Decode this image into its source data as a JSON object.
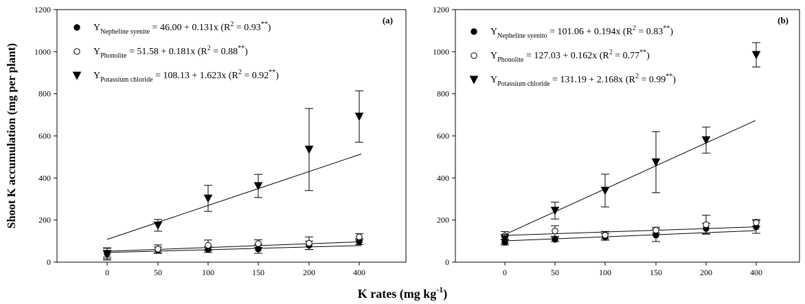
{
  "figure": {
    "ylabel": "Shoot K accumulation (mg per plant)",
    "xlabel_main": "K rates (mg kg",
    "xlabel_sup": "-1",
    "xlabel_close": ")"
  },
  "chart_data": [
    {
      "type": "scatter",
      "panel_label": "(a)",
      "categories": [
        "0",
        "50",
        "100",
        "150",
        "200",
        "400"
      ],
      "ylim": [
        0,
        1200
      ],
      "yticks": [
        "0",
        "200",
        "400",
        "600",
        "800",
        "1000",
        "1200"
      ],
      "legend_position": "top-left",
      "series": [
        {
          "name": "Nepheline syenite",
          "legend": {
            "pre": "Y",
            "sub": "Nepheline syenite",
            "eq": " =  46.00 + 0.131x (R",
            "sup1": "2",
            "r2": " = 0.93",
            "sup2": "**",
            "close": ")"
          },
          "marker": "filled-circle",
          "values": [
            40,
            58,
            60,
            62,
            80,
            97
          ],
          "error": [
            16,
            14,
            14,
            20,
            20,
            14
          ],
          "fit": {
            "intercept": 46.0,
            "slope": 0.131
          }
        },
        {
          "name": "Phonolite",
          "legend": {
            "pre": "Y",
            "sub": "Phonolite",
            "eq": " = 51.58 + 0.181x (R",
            "sup1": "2",
            "r2": " = 0.88",
            "sup2": "**",
            "close": ")"
          },
          "marker": "open-circle",
          "values": [
            42,
            62,
            80,
            88,
            90,
            120
          ],
          "error": [
            26,
            20,
            25,
            18,
            30,
            15
          ],
          "fit": {
            "intercept": 51.58,
            "slope": 0.181
          }
        },
        {
          "name": "Potassium chloride",
          "legend": {
            "pre": "Y",
            "sub": "Potassium chloride",
            "eq": " = 108.13 + 1.623x (R",
            "sup1": "2",
            "r2": " = 0.92",
            "sup2": "**",
            "close": ")"
          },
          "marker": "filled-triangle-down",
          "values": [
            38,
            175,
            303,
            362,
            535,
            692
          ],
          "error": [
            28,
            28,
            62,
            55,
            195,
            122
          ],
          "fit": {
            "intercept": 108.13,
            "slope": 1.623
          }
        }
      ]
    },
    {
      "type": "scatter",
      "panel_label": "(b)",
      "categories": [
        "0",
        "50",
        "100",
        "150",
        "200",
        "400"
      ],
      "ylim": [
        0,
        1200
      ],
      "yticks": [
        "0",
        "200",
        "400",
        "600",
        "800",
        "1000",
        "1200"
      ],
      "legend_position": "top-left",
      "series": [
        {
          "name": "Nepheline syenito",
          "legend": {
            "pre": "Y",
            "sub": "Nepheline syenito",
            "eq": " = 101.06 +  0.194x  (R",
            "sup1": "2",
            "r2": " = 0.83",
            "sup2": "**",
            "close": ")"
          },
          "marker": "filled-circle",
          "values": [
            95,
            108,
            120,
            128,
            160,
            167
          ],
          "error": [
            14,
            10,
            16,
            30,
            25,
            30
          ],
          "fit": {
            "intercept": 101.06,
            "slope": 0.194
          }
        },
        {
          "name": "Phonolite",
          "legend": {
            "pre": "Y",
            "sub": "Phonolite",
            "eq": " = 127.03 + 0.162x (R",
            "sup1": "2",
            "r2": " = 0.77",
            "sup2": "**",
            "close": ")"
          },
          "marker": "open-circle",
          "values": [
            125,
            148,
            128,
            152,
            178,
            187
          ],
          "error": [
            20,
            25,
            18,
            14,
            45,
            16
          ],
          "fit": {
            "intercept": 127.03,
            "slope": 0.162
          }
        },
        {
          "name": "Potassium chloride",
          "legend": {
            "pre": "Y",
            "sub": "Potassium chloride",
            "eq": " = 131.19 + 2.168x (R",
            "sup1": "2",
            "r2": " = 0.99",
            "sup2": "**",
            "close": ")"
          },
          "marker": "filled-triangle-down",
          "values": [
            110,
            245,
            340,
            475,
            580,
            985
          ],
          "error": [
            22,
            40,
            78,
            145,
            62,
            58
          ],
          "fit": {
            "intercept": 131.19,
            "slope": 2.168
          }
        }
      ]
    }
  ]
}
